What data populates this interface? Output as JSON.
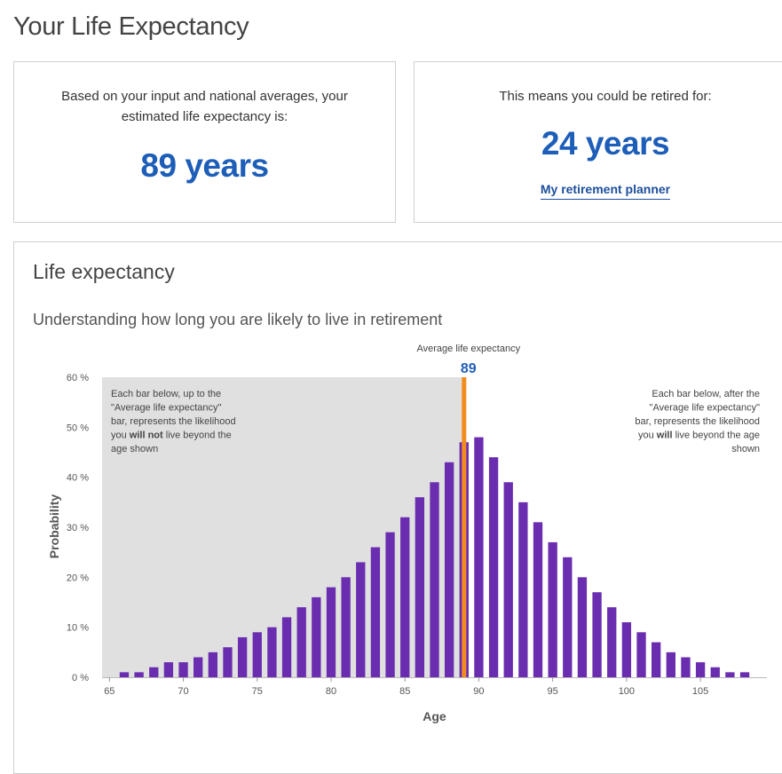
{
  "page": {
    "title": "Your Life Expectancy"
  },
  "cards": {
    "life_expectancy": {
      "text": "Based on your input and national averages, your estimated life expectancy is:",
      "value": "89 years"
    },
    "retired": {
      "text": "This means you could be retired for:",
      "value": "24 years",
      "link_label": "My retirement planner"
    }
  },
  "chart_section": {
    "title": "Life expectancy",
    "subtitle": "Understanding how long you are likely to live in retirement"
  },
  "chart_data": {
    "type": "bar",
    "xlabel": "Age",
    "ylabel": "Probability",
    "ylim": [
      0,
      60
    ],
    "y_ticks": [
      0,
      10,
      20,
      30,
      40,
      50,
      60
    ],
    "y_tick_suffix": " %",
    "x_ticks": [
      65,
      70,
      75,
      80,
      85,
      90,
      95,
      100,
      105
    ],
    "xlim": [
      64.5,
      109.5
    ],
    "bar_color": "#6a2db0",
    "marker_color": "#f28c1e",
    "shaded_color": "#e0e0e0",
    "average_marker": {
      "label": "Average life expectancy",
      "value": 89
    },
    "left_note": {
      "lines": [
        "Each bar below, up to the",
        "\"Average life expectancy\"",
        "bar, represents the likelihood",
        "you ",
        "will not",
        " live beyond the",
        "age shown"
      ]
    },
    "right_note": {
      "lines": [
        "Each bar below, after the",
        "\"Average life expectancy\"",
        "bar, represents the likelihood",
        "you ",
        "will",
        " live beyond the age",
        "shown"
      ]
    },
    "x": [
      66,
      67,
      68,
      69,
      70,
      71,
      72,
      73,
      74,
      75,
      76,
      77,
      78,
      79,
      80,
      81,
      82,
      83,
      84,
      85,
      86,
      87,
      88,
      89,
      90,
      91,
      92,
      93,
      94,
      95,
      96,
      97,
      98,
      99,
      100,
      101,
      102,
      103,
      104,
      105,
      106,
      107,
      108
    ],
    "values": [
      1,
      1,
      2,
      3,
      3,
      4,
      5,
      6,
      8,
      9,
      10,
      12,
      14,
      16,
      18,
      20,
      23,
      26,
      29,
      32,
      36,
      39,
      43,
      47,
      48,
      44,
      39,
      35,
      31,
      27,
      24,
      20,
      17,
      14,
      11,
      9,
      7,
      5,
      4,
      3,
      2,
      1,
      1
    ]
  }
}
